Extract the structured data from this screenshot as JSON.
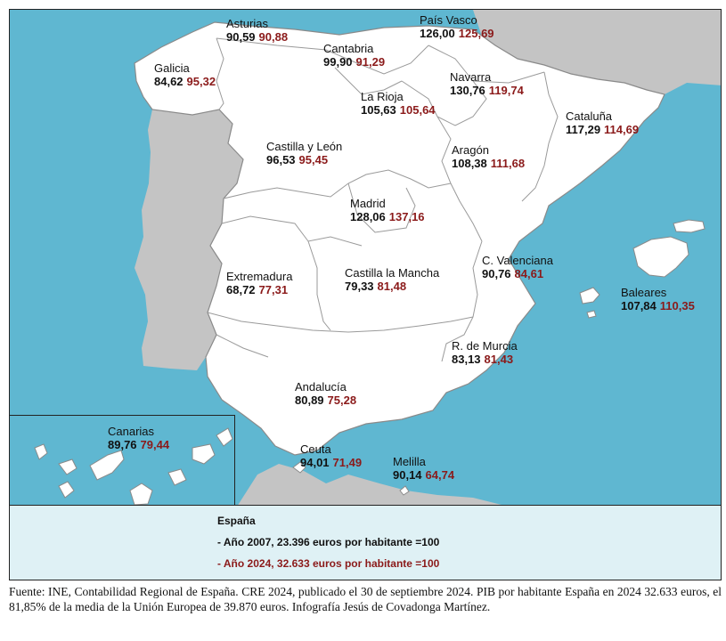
{
  "regions": {
    "asturias": {
      "name": "Asturias",
      "v2007": "90,59",
      "v2024": "90,88"
    },
    "pais_vasco": {
      "name": "País Vasco",
      "v2007": "126,00",
      "v2024": "125,69"
    },
    "cantabria": {
      "name": "Cantabria",
      "v2007": "99,90",
      "v2024": "91,29"
    },
    "galicia": {
      "name": "Galicia",
      "v2007": "84,62",
      "v2024": "95,32"
    },
    "navarra": {
      "name": "Navarra",
      "v2007": "130,76",
      "v2024": "119,74"
    },
    "la_rioja": {
      "name": "La Rioja",
      "v2007": "105,63",
      "v2024": "105,64"
    },
    "cataluna": {
      "name": "Cataluña",
      "v2007": "117,29",
      "v2024": "114,69"
    },
    "castilla_leon": {
      "name": "Castilla y León",
      "v2007": "96,53",
      "v2024": "95,45"
    },
    "aragon": {
      "name": "Aragón",
      "v2007": "108,38",
      "v2024": "111,68"
    },
    "madrid": {
      "name": "Madrid",
      "v2007": "128,06",
      "v2024": "137,16"
    },
    "c_valenciana": {
      "name": "C. Valenciana",
      "v2007": "90,76",
      "v2024": "84,61"
    },
    "extremadura": {
      "name": "Extremadura",
      "v2007": "68,72",
      "v2024": "77,31"
    },
    "castilla_mancha": {
      "name": "Castilla la Mancha",
      "v2007": "79,33",
      "v2024": "81,48"
    },
    "baleares": {
      "name": "Baleares",
      "v2007": "107,84",
      "v2024": "110,35"
    },
    "murcia": {
      "name": "R. de Murcia",
      "v2007": "83,13",
      "v2024": "81,43"
    },
    "andalucia": {
      "name": "Andalucía",
      "v2007": "80,89",
      "v2024": "75,28"
    },
    "canarias": {
      "name": "Canarias",
      "v2007": "89,76",
      "v2024": "79,44"
    },
    "ceuta": {
      "name": "Ceuta",
      "v2007": "94,01",
      "v2024": "71,49"
    },
    "melilla": {
      "name": "Melilla",
      "v2007": "90,14",
      "v2024": "64,74"
    }
  },
  "legend": {
    "title": "España",
    "line_2007": "- Año 2007, 23.396 euros por habitante =100",
    "line_2024": "- Año 2024, 32.633 euros por habitante =100"
  },
  "footnote": "Fuente: INE, Contabilidad Regional de España.  CRE 2024, publicado el 30 de septiembre 2024. PIB por habitante España en 2024 32.633 euros, el 81,85% de la media de la Unión Europea de 39.870 euros. Infografía Jesús de Covadonga Martínez.",
  "colors": {
    "sea": "#5fb7d1",
    "land": "#ffffff",
    "neighbor": "#c4c4c4",
    "value_2007": "#111111",
    "value_2024": "#8b1a1a",
    "legend_bg": "#dff1f5"
  }
}
